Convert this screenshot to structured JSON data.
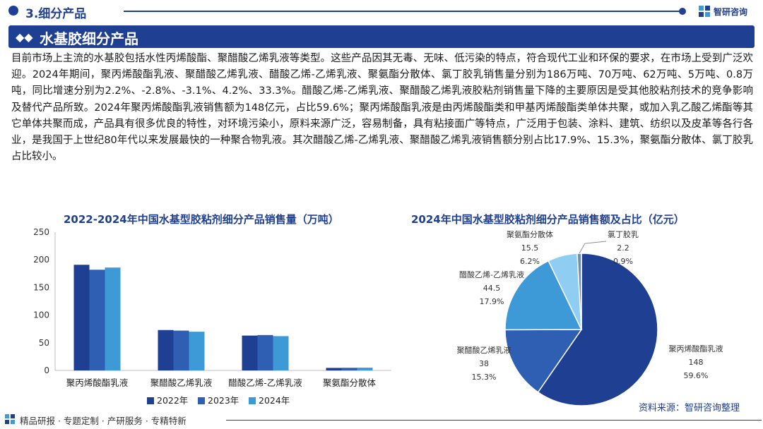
{
  "section": {
    "title": "3.细分产品"
  },
  "brand": {
    "name": "智研咨询"
  },
  "page_title": "水基胶细分产品",
  "body_text": "目前市场上主流的水基胶包括水性丙烯酸酯、聚醋酸乙烯乳液等类型。这些产品因其无毒、无味、低污染的特点，符合现代工业和环保的要求，在市场上受到广泛欢迎。2024年期间，聚丙烯酸酯乳液、聚醋酸乙烯乳液、醋酸乙烯-乙烯乳液、聚氨酯分散体、氯丁胶乳销售量分别为186万吨、70万吨、62万吨、5万吨、0.8万吨，同比增速分别为2.2%、-2.8%、-3.1%、4.2%、33.3%。醋酸乙烯-乙烯乳液、聚醋酸乙烯乳液胶粘剂销售量下降的主要原因是受其他胶粘剂技术的竞争影响及替代产品所致。2024年聚丙烯酸酯乳液销售额为148亿元，占比59.6%；聚丙烯酸酯乳液是由丙烯酸酯类和甲基丙烯酸酯类单体共聚，或加入乳乙酸乙烯酯等其它单体共聚而成，产品具有很多优良的特性，对环境污染小，原料来源广泛，容易制备，具有粘接面广等特点，广泛用于包装、涂料、建筑、纺织以及皮革等各行各业，是我国于上世纪80年代以来发展最快的一种聚合物乳液。其次醋酸乙烯-乙烯乳液、聚醋酸乙烯乳液销售额分别占比17.9%、15.3%，聚氨酯分散体、氯丁胶乳占比较小。",
  "footer": {
    "tagline": "精品研报 · 专题定制 · 产研服务 · 专精特新",
    "source": "资料来源：智研咨询整理"
  },
  "chart_data": [
    {
      "type": "bar",
      "title": "2022-2024年中国水基型胶粘剂细分产品销售量（万吨）",
      "categories": [
        "聚丙烯酸酯乳液",
        "聚醋酸乙烯乳液",
        "醋酸乙烯-乙烯乳液",
        "聚氨酯分散体"
      ],
      "series": [
        {
          "name": "2022年",
          "values": [
            191,
            73,
            63,
            4.6
          ],
          "color": "#1f3f93"
        },
        {
          "name": "2023年",
          "values": [
            182,
            72,
            64,
            4.8
          ],
          "color": "#2f5fb3"
        },
        {
          "name": "2024年",
          "values": [
            186,
            70,
            62,
            5
          ],
          "color": "#3d9ad6"
        }
      ],
      "ylim": [
        0,
        250
      ],
      "yticks": [
        0,
        50,
        100,
        150,
        200,
        250
      ],
      "legend": "bottom",
      "grid": false
    },
    {
      "type": "pie",
      "title": "2024年中国水基型胶粘剂细分产品销售额及占比（亿元）",
      "slices": [
        {
          "label": "聚丙烯酸酯乳液",
          "value": 148,
          "percent": "59.6%",
          "color": "#1f3f93"
        },
        {
          "label": "聚醋酸乙烯乳液",
          "value": 38,
          "percent": "15.3%",
          "color": "#2f5fb3"
        },
        {
          "label": "醋酸乙烯-乙烯乳液",
          "value": 44.5,
          "percent": "17.9%",
          "color": "#3d9ad6"
        },
        {
          "label": "聚氨酯分散体",
          "value": 15.5,
          "percent": "6.2%",
          "color": "#8fcdf2"
        },
        {
          "label": "氯丁胶乳",
          "value": 2.2,
          "percent": "0.9%",
          "color": "#6f8fa8"
        }
      ]
    }
  ]
}
